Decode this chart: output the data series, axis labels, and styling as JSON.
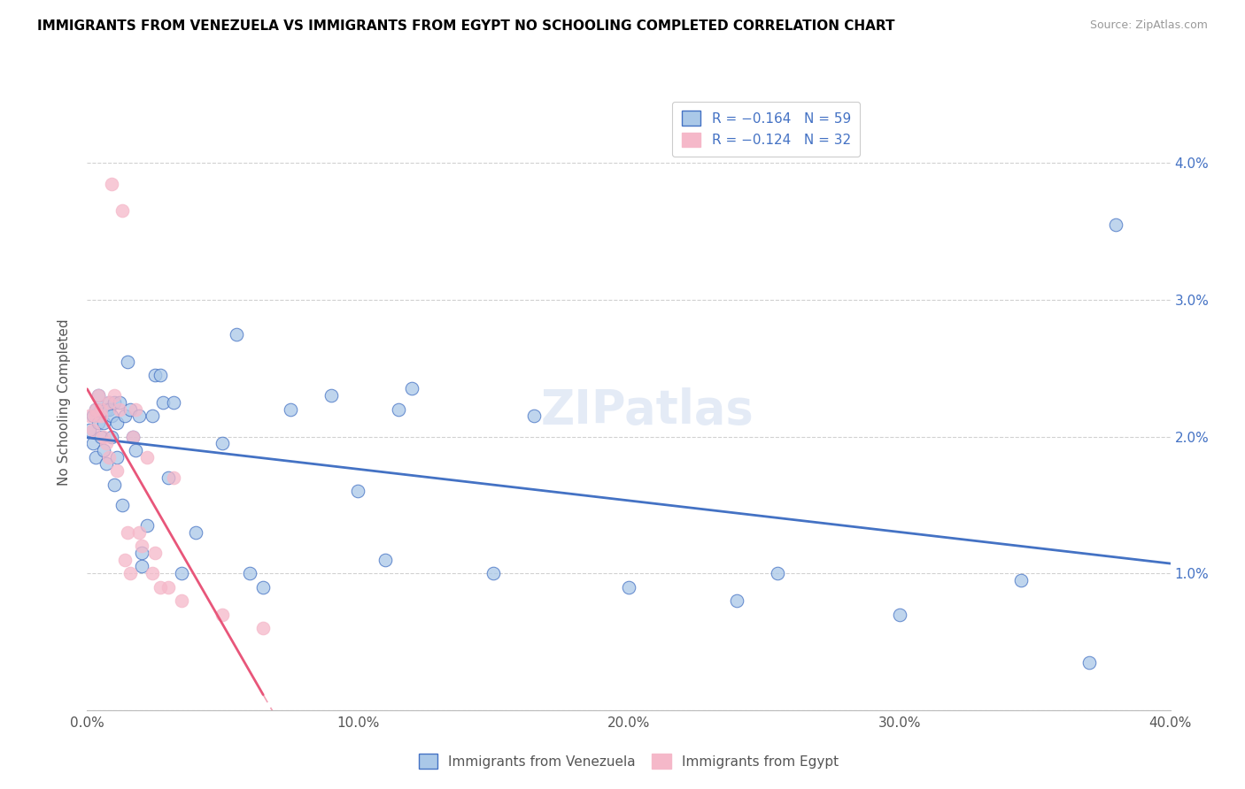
{
  "title": "IMMIGRANTS FROM VENEZUELA VS IMMIGRANTS FROM EGYPT NO SCHOOLING COMPLETED CORRELATION CHART",
  "source": "Source: ZipAtlas.com",
  "ylabel": "No Schooling Completed",
  "xlim": [
    0.0,
    0.4
  ],
  "ylim": [
    0.0,
    0.045
  ],
  "ytick_vals": [
    0.0,
    0.01,
    0.02,
    0.03,
    0.04
  ],
  "xtick_vals": [
    0.0,
    0.1,
    0.2,
    0.3,
    0.4
  ],
  "ytick_labels_right": [
    "",
    "1.0%",
    "2.0%",
    "3.0%",
    "4.0%"
  ],
  "xtick_labels": [
    "0.0%",
    "10.0%",
    "20.0%",
    "30.0%",
    "40.0%"
  ],
  "legend_line1": "R = −0.164   N = 59",
  "legend_line2": "R = −0.124   N = 32",
  "color_venezuela": "#aac8e8",
  "color_egypt": "#f5b8c9",
  "color_venezuela_line": "#4472c4",
  "color_egypt_line": "#e8567a",
  "legend_label_venezuela": "Immigrants from Venezuela",
  "legend_label_egypt": "Immigrants from Egypt",
  "venezuela_x": [
    0.001,
    0.002,
    0.002,
    0.003,
    0.003,
    0.004,
    0.004,
    0.005,
    0.005,
    0.006,
    0.006,
    0.007,
    0.007,
    0.008,
    0.008,
    0.009,
    0.009,
    0.01,
    0.01,
    0.011,
    0.011,
    0.012,
    0.013,
    0.014,
    0.015,
    0.016,
    0.017,
    0.018,
    0.019,
    0.02,
    0.02,
    0.022,
    0.024,
    0.025,
    0.027,
    0.028,
    0.03,
    0.032,
    0.035,
    0.04,
    0.05,
    0.055,
    0.06,
    0.065,
    0.075,
    0.09,
    0.1,
    0.11,
    0.115,
    0.12,
    0.15,
    0.165,
    0.2,
    0.24,
    0.255,
    0.3,
    0.345,
    0.37,
    0.38
  ],
  "venezuela_y": [
    0.0205,
    0.0215,
    0.0195,
    0.022,
    0.0185,
    0.021,
    0.023,
    0.02,
    0.022,
    0.021,
    0.019,
    0.022,
    0.018,
    0.0225,
    0.022,
    0.02,
    0.0215,
    0.0225,
    0.0165,
    0.0185,
    0.021,
    0.0225,
    0.015,
    0.0215,
    0.0255,
    0.022,
    0.02,
    0.019,
    0.0215,
    0.0115,
    0.0105,
    0.0135,
    0.0215,
    0.0245,
    0.0245,
    0.0225,
    0.017,
    0.0225,
    0.01,
    0.013,
    0.0195,
    0.0275,
    0.01,
    0.009,
    0.022,
    0.023,
    0.016,
    0.011,
    0.022,
    0.0235,
    0.01,
    0.0215,
    0.009,
    0.008,
    0.01,
    0.007,
    0.0095,
    0.0035,
    0.0355
  ],
  "egypt_x": [
    0.001,
    0.002,
    0.003,
    0.003,
    0.004,
    0.005,
    0.005,
    0.006,
    0.007,
    0.008,
    0.008,
    0.009,
    0.01,
    0.011,
    0.012,
    0.013,
    0.014,
    0.015,
    0.016,
    0.017,
    0.018,
    0.019,
    0.02,
    0.022,
    0.024,
    0.025,
    0.027,
    0.03,
    0.032,
    0.035,
    0.05,
    0.065
  ],
  "egypt_y": [
    0.0215,
    0.0205,
    0.022,
    0.0215,
    0.023,
    0.022,
    0.0215,
    0.02,
    0.0195,
    0.0185,
    0.0225,
    0.0385,
    0.023,
    0.0175,
    0.022,
    0.0365,
    0.011,
    0.013,
    0.01,
    0.02,
    0.022,
    0.013,
    0.012,
    0.0185,
    0.01,
    0.0115,
    0.009,
    0.009,
    0.017,
    0.008,
    0.007,
    0.006
  ]
}
